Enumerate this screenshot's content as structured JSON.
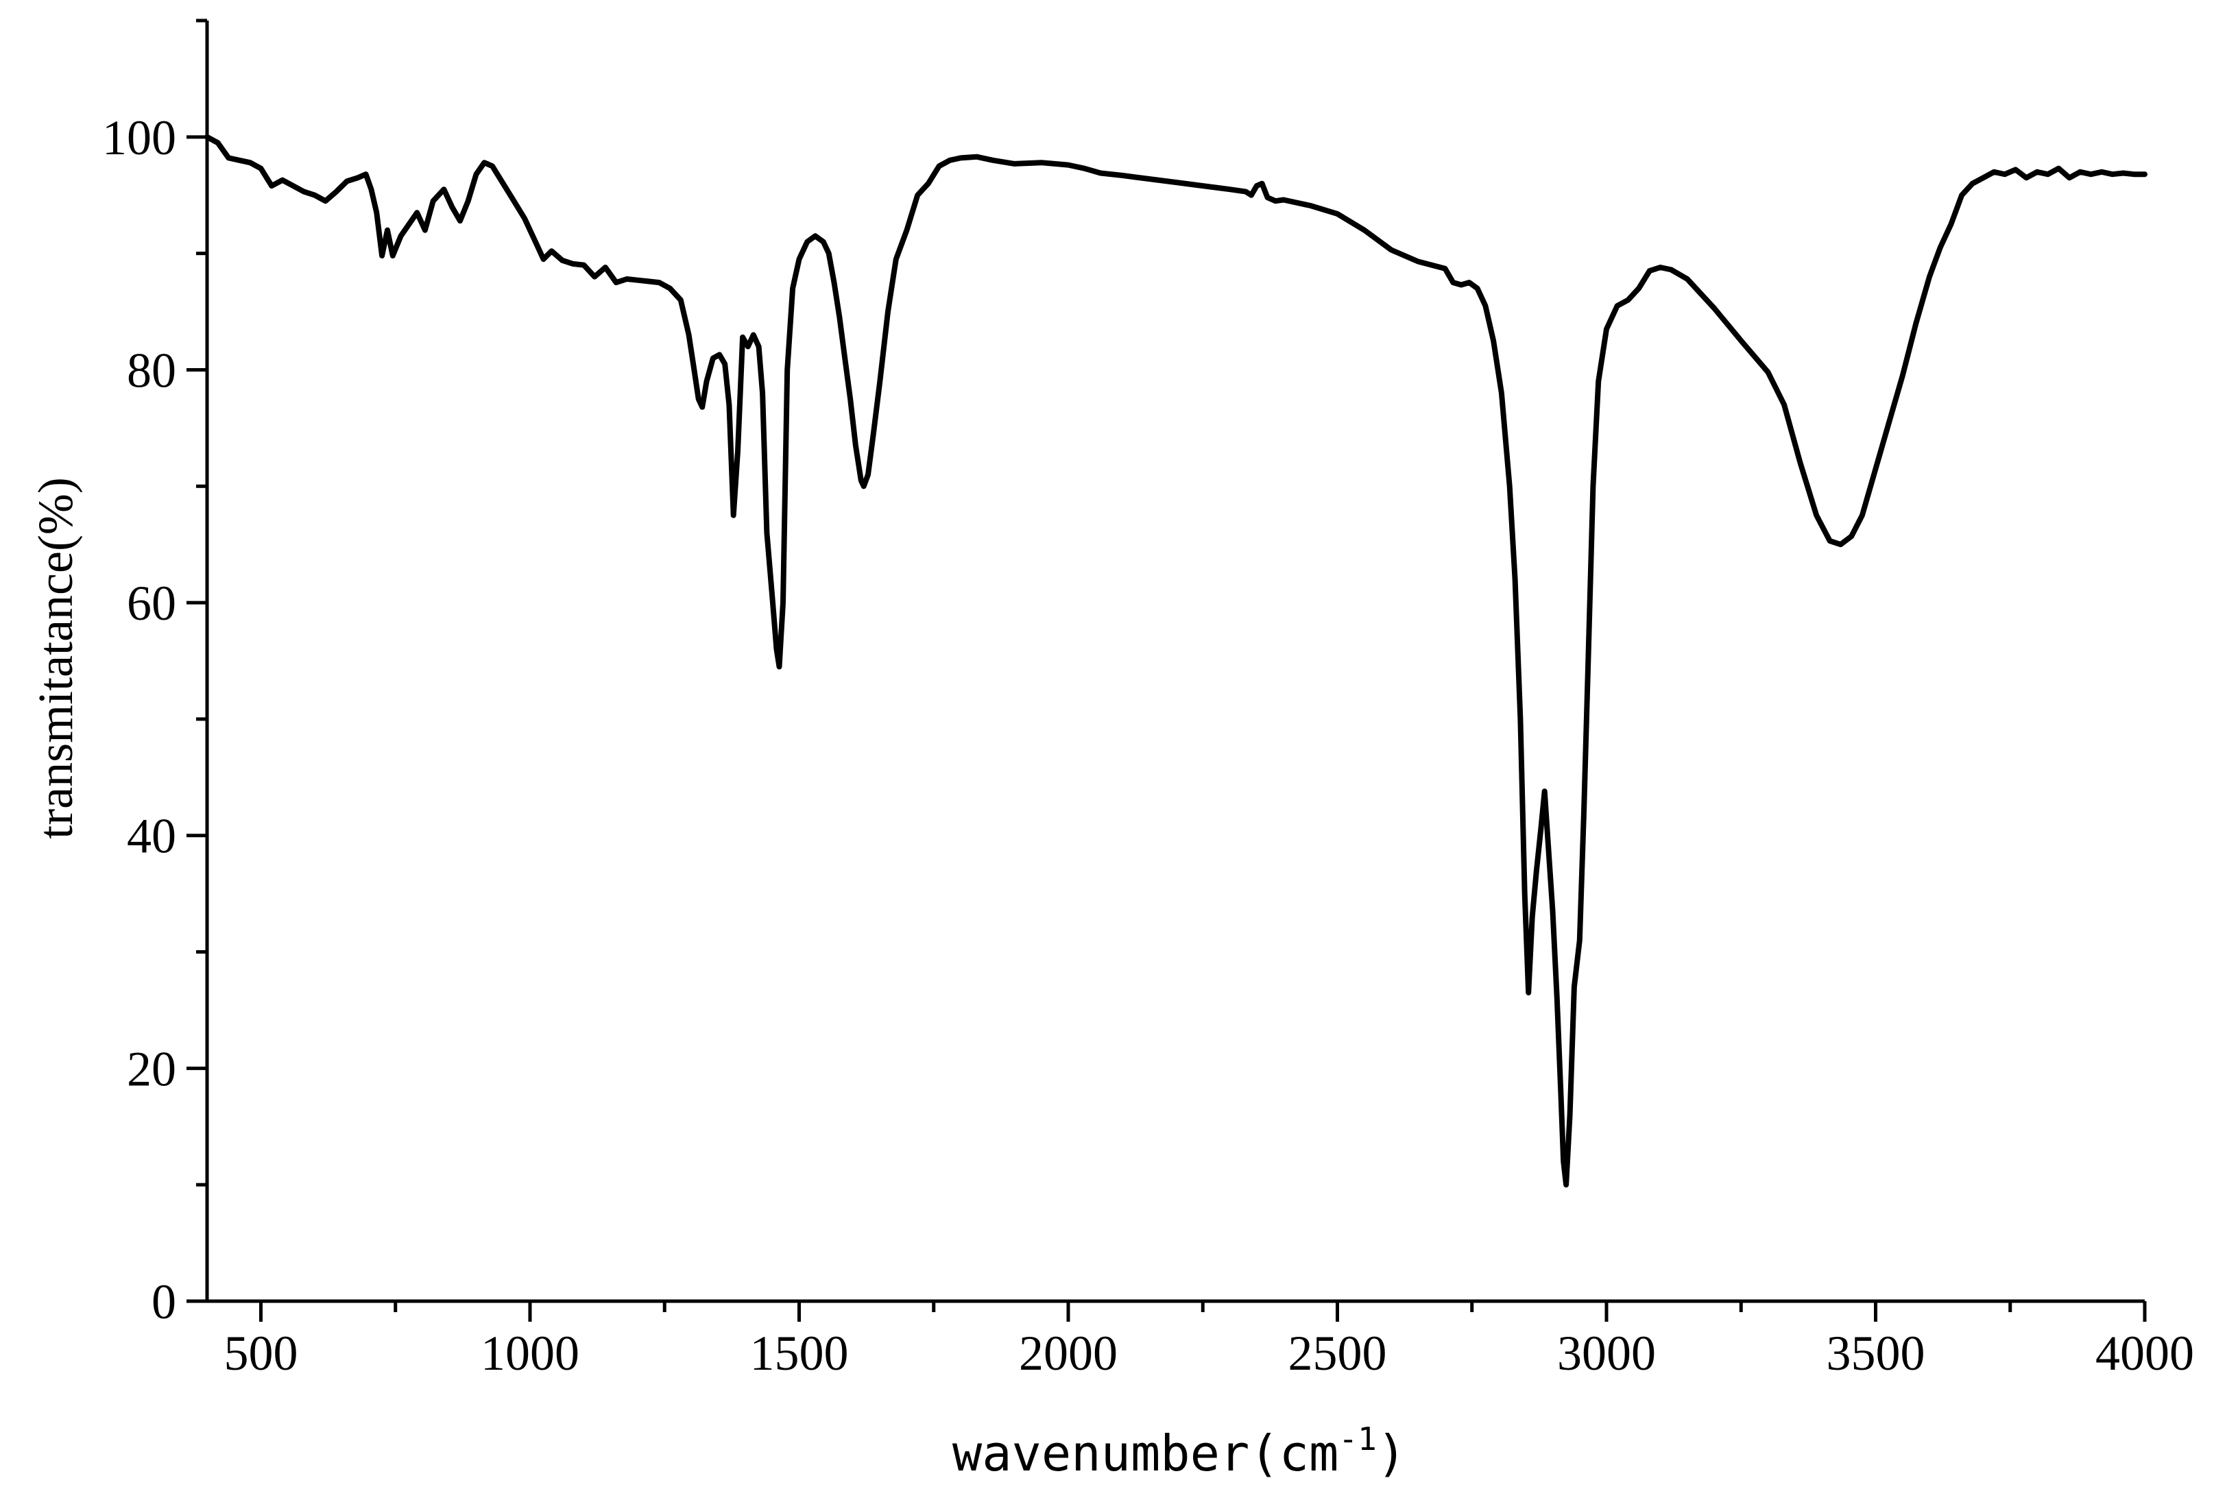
{
  "chart_data": {
    "type": "line",
    "title": "",
    "xlabel_main": "wavenumber(cm",
    "xlabel_sup": "-1",
    "xlabel_close": ")",
    "ylabel": "transmitatance(%)",
    "xlim": [
      400,
      4000
    ],
    "ylim": [
      0,
      110
    ],
    "x_ticks": [
      500,
      1000,
      1500,
      2000,
      2500,
      3000,
      3500,
      4000
    ],
    "x_tick_labels": [
      "500",
      "1000",
      "1500",
      "2000",
      "2500",
      "3000",
      "3500",
      "4000"
    ],
    "y_ticks": [
      0,
      20,
      40,
      60,
      80,
      100
    ],
    "y_tick_labels": [
      "0",
      "20",
      "40",
      "60",
      "80",
      "100"
    ],
    "grid": false,
    "legend": "none",
    "line_color": "#000000",
    "series": [
      {
        "points": [
          [
            400,
            100
          ],
          [
            420,
            99.5
          ],
          [
            440,
            98.2
          ],
          [
            460,
            98.0
          ],
          [
            480,
            97.8
          ],
          [
            500,
            97.3
          ],
          [
            520,
            95.8
          ],
          [
            540,
            96.3
          ],
          [
            560,
            95.8
          ],
          [
            580,
            95.3
          ],
          [
            600,
            95.0
          ],
          [
            620,
            94.5
          ],
          [
            640,
            95.3
          ],
          [
            660,
            96.2
          ],
          [
            680,
            96.5
          ],
          [
            695,
            96.8
          ],
          [
            705,
            95.5
          ],
          [
            715,
            93.5
          ],
          [
            725,
            89.8
          ],
          [
            735,
            92.0
          ],
          [
            745,
            89.8
          ],
          [
            760,
            91.5
          ],
          [
            775,
            92.5
          ],
          [
            790,
            93.5
          ],
          [
            805,
            92.0
          ],
          [
            820,
            94.5
          ],
          [
            840,
            95.5
          ],
          [
            855,
            94.0
          ],
          [
            870,
            92.8
          ],
          [
            885,
            94.5
          ],
          [
            900,
            96.8
          ],
          [
            915,
            97.8
          ],
          [
            930,
            97.5
          ],
          [
            950,
            96.0
          ],
          [
            970,
            94.5
          ],
          [
            990,
            93.0
          ],
          [
            1010,
            91.0
          ],
          [
            1025,
            89.5
          ],
          [
            1040,
            90.2
          ],
          [
            1060,
            89.4
          ],
          [
            1080,
            89.1
          ],
          [
            1100,
            89.0
          ],
          [
            1120,
            88.0
          ],
          [
            1140,
            88.8
          ],
          [
            1160,
            87.5
          ],
          [
            1180,
            87.8
          ],
          [
            1200,
            87.7
          ],
          [
            1220,
            87.6
          ],
          [
            1240,
            87.5
          ],
          [
            1260,
            87.0
          ],
          [
            1280,
            86.0
          ],
          [
            1295,
            83.0
          ],
          [
            1305,
            80.0
          ],
          [
            1313,
            77.5
          ],
          [
            1320,
            76.8
          ],
          [
            1328,
            79.0
          ],
          [
            1340,
            81.0
          ],
          [
            1352,
            81.3
          ],
          [
            1362,
            80.5
          ],
          [
            1370,
            77.0
          ],
          [
            1378,
            67.5
          ],
          [
            1386,
            73.0
          ],
          [
            1395,
            82.8
          ],
          [
            1405,
            82.0
          ],
          [
            1415,
            83.0
          ],
          [
            1425,
            82.0
          ],
          [
            1432,
            78.0
          ],
          [
            1440,
            66.0
          ],
          [
            1450,
            60.5
          ],
          [
            1458,
            56.0
          ],
          [
            1463,
            54.5
          ],
          [
            1470,
            60.0
          ],
          [
            1478,
            80.0
          ],
          [
            1488,
            87.0
          ],
          [
            1500,
            89.5
          ],
          [
            1515,
            91.0
          ],
          [
            1530,
            91.5
          ],
          [
            1545,
            91.0
          ],
          [
            1555,
            90.0
          ],
          [
            1565,
            87.5
          ],
          [
            1575,
            84.5
          ],
          [
            1585,
            81.0
          ],
          [
            1595,
            77.5
          ],
          [
            1605,
            73.5
          ],
          [
            1615,
            70.5
          ],
          [
            1620,
            70.0
          ],
          [
            1628,
            71.0
          ],
          [
            1638,
            74.5
          ],
          [
            1650,
            79.0
          ],
          [
            1665,
            85.0
          ],
          [
            1680,
            89.5
          ],
          [
            1700,
            92.0
          ],
          [
            1720,
            95.0
          ],
          [
            1740,
            96.0
          ],
          [
            1760,
            97.5
          ],
          [
            1780,
            98.0
          ],
          [
            1800,
            98.2
          ],
          [
            1830,
            98.3
          ],
          [
            1860,
            98.0
          ],
          [
            1900,
            97.7
          ],
          [
            1950,
            97.8
          ],
          [
            2000,
            97.6
          ],
          [
            2030,
            97.3
          ],
          [
            2060,
            96.9
          ],
          [
            2100,
            96.7
          ],
          [
            2150,
            96.4
          ],
          [
            2200,
            96.1
          ],
          [
            2250,
            95.8
          ],
          [
            2300,
            95.5
          ],
          [
            2330,
            95.3
          ],
          [
            2340,
            95.0
          ],
          [
            2350,
            95.8
          ],
          [
            2360,
            96.0
          ],
          [
            2370,
            94.8
          ],
          [
            2385,
            94.5
          ],
          [
            2400,
            94.6
          ],
          [
            2450,
            94.1
          ],
          [
            2500,
            93.4
          ],
          [
            2550,
            92.0
          ],
          [
            2600,
            90.3
          ],
          [
            2650,
            89.3
          ],
          [
            2675,
            89.0
          ],
          [
            2700,
            88.7
          ],
          [
            2715,
            87.5
          ],
          [
            2730,
            87.3
          ],
          [
            2745,
            87.5
          ],
          [
            2760,
            87.0
          ],
          [
            2775,
            85.5
          ],
          [
            2790,
            82.5
          ],
          [
            2805,
            78.0
          ],
          [
            2820,
            70.0
          ],
          [
            2830,
            62.0
          ],
          [
            2840,
            50.0
          ],
          [
            2848,
            35.0
          ],
          [
            2855,
            26.5
          ],
          [
            2862,
            33.0
          ],
          [
            2870,
            37.0
          ],
          [
            2878,
            40.5
          ],
          [
            2885,
            43.8
          ],
          [
            2892,
            39.0
          ],
          [
            2900,
            33.5
          ],
          [
            2908,
            26.0
          ],
          [
            2915,
            18.0
          ],
          [
            2920,
            12.0
          ],
          [
            2925,
            10.0
          ],
          [
            2932,
            16.0
          ],
          [
            2940,
            27.0
          ],
          [
            2950,
            31.0
          ],
          [
            2958,
            42.0
          ],
          [
            2966,
            55.0
          ],
          [
            2975,
            70.0
          ],
          [
            2985,
            79.0
          ],
          [
            3000,
            83.5
          ],
          [
            3020,
            85.5
          ],
          [
            3040,
            86.0
          ],
          [
            3060,
            87.0
          ],
          [
            3080,
            88.5
          ],
          [
            3100,
            88.8
          ],
          [
            3120,
            88.6
          ],
          [
            3150,
            87.8
          ],
          [
            3200,
            85.3
          ],
          [
            3250,
            82.5
          ],
          [
            3300,
            79.8
          ],
          [
            3330,
            77.0
          ],
          [
            3360,
            72.0
          ],
          [
            3390,
            67.5
          ],
          [
            3415,
            65.3
          ],
          [
            3435,
            65.0
          ],
          [
            3455,
            65.7
          ],
          [
            3475,
            67.5
          ],
          [
            3500,
            71.5
          ],
          [
            3525,
            75.5
          ],
          [
            3550,
            79.5
          ],
          [
            3575,
            84.0
          ],
          [
            3600,
            88.0
          ],
          [
            3620,
            90.5
          ],
          [
            3640,
            92.5
          ],
          [
            3660,
            95.0
          ],
          [
            3680,
            96.0
          ],
          [
            3700,
            96.5
          ],
          [
            3720,
            97.0
          ],
          [
            3740,
            96.8
          ],
          [
            3760,
            97.2
          ],
          [
            3780,
            96.5
          ],
          [
            3800,
            97.0
          ],
          [
            3820,
            96.8
          ],
          [
            3840,
            97.3
          ],
          [
            3860,
            96.5
          ],
          [
            3880,
            97.0
          ],
          [
            3900,
            96.8
          ],
          [
            3920,
            97.0
          ],
          [
            3940,
            96.8
          ],
          [
            3960,
            96.9
          ],
          [
            3980,
            96.8
          ],
          [
            4000,
            96.8
          ]
        ]
      }
    ]
  }
}
